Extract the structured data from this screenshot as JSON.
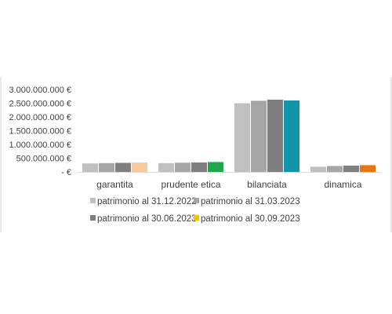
{
  "chart_data": {
    "type": "bar",
    "categories": [
      "garantita",
      "prudente etica",
      "bilanciata",
      "dinamica"
    ],
    "series": [
      {
        "name": "patrimonio al 31.12.2022",
        "values": [
          310000000,
          320000000,
          2500000000,
          190000000
        ]
      },
      {
        "name": "patrimonio al 31.03.2023",
        "values": [
          320000000,
          335000000,
          2590000000,
          215000000
        ]
      },
      {
        "name": "patrimonio al 30.06.2023",
        "values": [
          330000000,
          345000000,
          2630000000,
          230000000
        ]
      },
      {
        "name": "patrimonio al 30.09.2023",
        "values": [
          340000000,
          360000000,
          2600000000,
          245000000
        ]
      }
    ],
    "ylim": [
      0,
      3000000000
    ],
    "ytick_labels": [
      "-   €",
      "500.000.000 €",
      "1.000.000.000 €",
      "1.500.000.000 €",
      "2.000.000.000 €",
      "2.500.000.000 €",
      "3.000.000.000 €"
    ],
    "grid": false,
    "legend_position": "bottom",
    "colors": {
      "series_grays": [
        "#c0c0c0",
        "#a6a6a6",
        "#7f7f7f"
      ],
      "last_series_by_category": [
        "#f8c89f",
        "#1ea84a",
        "#1295a8",
        "#e87511"
      ],
      "legend_last_swatch": "#ffc000",
      "axis": "#d9d9d9",
      "frame": "#d0d0d0",
      "text": "#404040"
    }
  }
}
